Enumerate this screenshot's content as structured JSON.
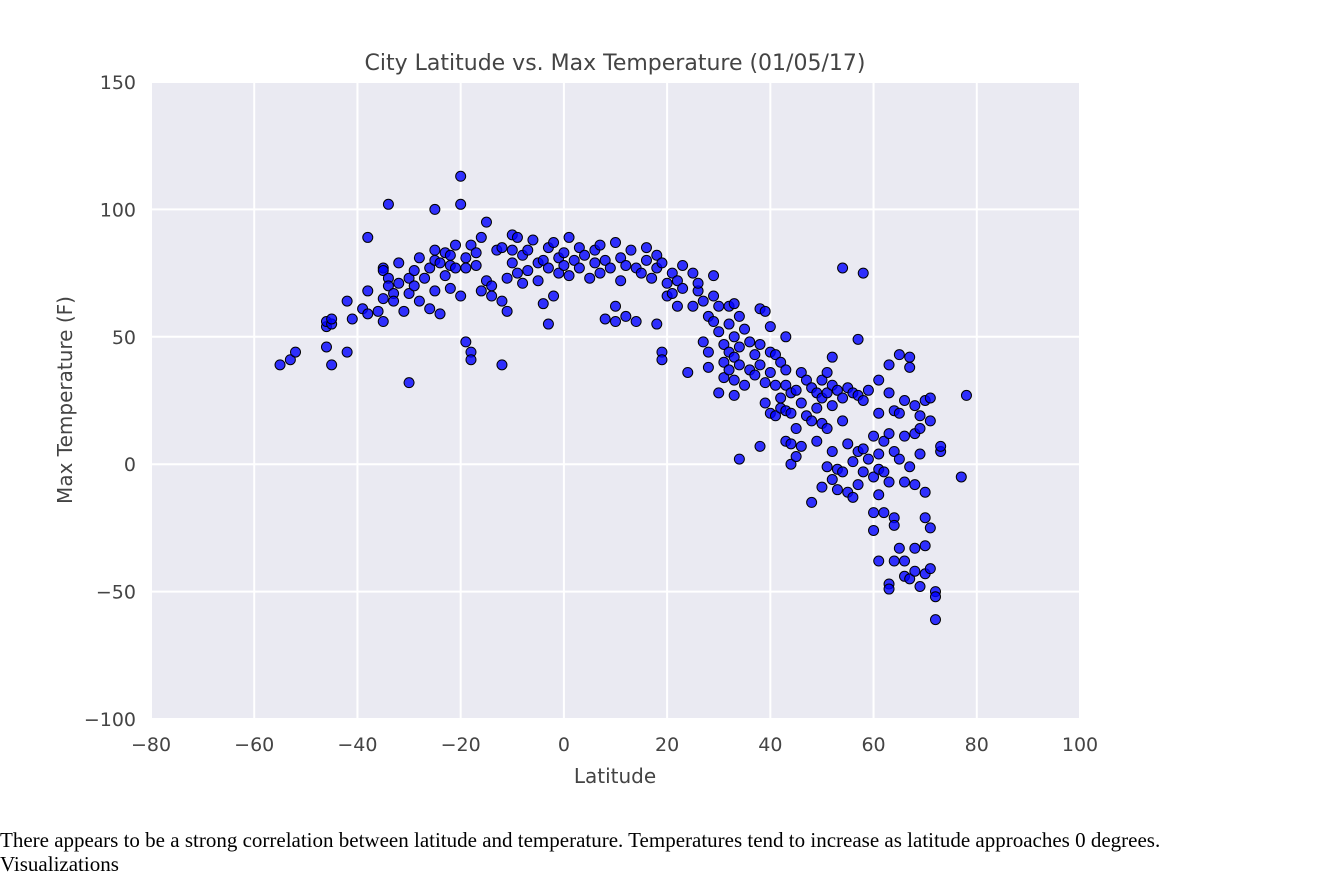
{
  "chart_data": {
    "type": "scatter",
    "title": "City Latitude vs. Max Temperature (01/05/17)",
    "xlabel": "Latitude",
    "ylabel": "Max Temperature (F)",
    "xlim": [
      -80,
      100
    ],
    "ylim": [
      -100,
      150
    ],
    "xticks": [
      -80,
      -60,
      -40,
      -20,
      0,
      20,
      40,
      60,
      80,
      100
    ],
    "yticks": [
      -100,
      -50,
      0,
      50,
      100,
      150
    ],
    "xtick_labels": [
      "−80",
      "−60",
      "−40",
      "−20",
      "0",
      "20",
      "40",
      "60",
      "80",
      "100"
    ],
    "ytick_labels": [
      "−100",
      "−50",
      "0",
      "50",
      "100",
      "150"
    ],
    "grid": true,
    "background": "#EAEAF2",
    "grid_color": "#FFFFFF",
    "marker_color": "#0000FF",
    "marker_edge": "#000000",
    "points": [
      [
        -55,
        39
      ],
      [
        -53,
        41
      ],
      [
        -52,
        44
      ],
      [
        -46,
        54
      ],
      [
        -46,
        56
      ],
      [
        -45,
        55
      ],
      [
        -45,
        57
      ],
      [
        -46,
        46
      ],
      [
        -45,
        39
      ],
      [
        -42,
        64
      ],
      [
        -42,
        44
      ],
      [
        -41,
        57
      ],
      [
        -39,
        61
      ],
      [
        -38,
        59
      ],
      [
        -38,
        68
      ],
      [
        -38,
        89
      ],
      [
        -36,
        60
      ],
      [
        -35,
        77
      ],
      [
        -35,
        76
      ],
      [
        -35,
        65
      ],
      [
        -35,
        56
      ],
      [
        -34,
        73
      ],
      [
        -34,
        102
      ],
      [
        -34,
        70
      ],
      [
        -33,
        67
      ],
      [
        -33,
        64
      ],
      [
        -32,
        79
      ],
      [
        -32,
        71
      ],
      [
        -31,
        60
      ],
      [
        -30,
        32
      ],
      [
        -30,
        73
      ],
      [
        -30,
        67
      ],
      [
        -29,
        76
      ],
      [
        -29,
        70
      ],
      [
        -28,
        81
      ],
      [
        -28,
        64
      ],
      [
        -27,
        73
      ],
      [
        -26,
        61
      ],
      [
        -26,
        77
      ],
      [
        -25,
        84
      ],
      [
        -25,
        80
      ],
      [
        -25,
        68
      ],
      [
        -25,
        100
      ],
      [
        -24,
        59
      ],
      [
        -24,
        79
      ],
      [
        -23,
        83
      ],
      [
        -23,
        74
      ],
      [
        -22,
        82
      ],
      [
        -22,
        78
      ],
      [
        -22,
        69
      ],
      [
        -21,
        86
      ],
      [
        -21,
        77
      ],
      [
        -20,
        113
      ],
      [
        -20,
        102
      ],
      [
        -20,
        66
      ],
      [
        -19,
        48
      ],
      [
        -19,
        77
      ],
      [
        -19,
        81
      ],
      [
        -18,
        44
      ],
      [
        -18,
        41
      ],
      [
        -18,
        86
      ],
      [
        -17,
        83
      ],
      [
        -17,
        78
      ],
      [
        -16,
        68
      ],
      [
        -16,
        89
      ],
      [
        -15,
        95
      ],
      [
        -15,
        72
      ],
      [
        -14,
        70
      ],
      [
        -14,
        66
      ],
      [
        -13,
        84
      ],
      [
        -12,
        85
      ],
      [
        -12,
        39
      ],
      [
        -12,
        64
      ],
      [
        -11,
        73
      ],
      [
        -11,
        60
      ],
      [
        -10,
        90
      ],
      [
        -10,
        84
      ],
      [
        -10,
        79
      ],
      [
        -9,
        89
      ],
      [
        -9,
        75
      ],
      [
        -8,
        82
      ],
      [
        -8,
        71
      ],
      [
        -7,
        84
      ],
      [
        -7,
        76
      ],
      [
        -6,
        88
      ],
      [
        -5,
        79
      ],
      [
        -5,
        72
      ],
      [
        -4,
        80
      ],
      [
        -4,
        63
      ],
      [
        -3,
        55
      ],
      [
        -3,
        85
      ],
      [
        -3,
        77
      ],
      [
        -2,
        66
      ],
      [
        -2,
        87
      ],
      [
        -1,
        81
      ],
      [
        -1,
        75
      ],
      [
        0,
        78
      ],
      [
        0,
        83
      ],
      [
        1,
        89
      ],
      [
        1,
        74
      ],
      [
        2,
        80
      ],
      [
        3,
        85
      ],
      [
        3,
        77
      ],
      [
        4,
        82
      ],
      [
        5,
        73
      ],
      [
        6,
        79
      ],
      [
        6,
        84
      ],
      [
        7,
        75
      ],
      [
        7,
        86
      ],
      [
        8,
        80
      ],
      [
        8,
        57
      ],
      [
        9,
        77
      ],
      [
        10,
        87
      ],
      [
        10,
        56
      ],
      [
        10,
        62
      ],
      [
        11,
        81
      ],
      [
        11,
        72
      ],
      [
        12,
        78
      ],
      [
        12,
        58
      ],
      [
        13,
        84
      ],
      [
        14,
        77
      ],
      [
        14,
        56
      ],
      [
        15,
        75
      ],
      [
        16,
        85
      ],
      [
        16,
        80
      ],
      [
        17,
        73
      ],
      [
        18,
        82
      ],
      [
        18,
        77
      ],
      [
        18,
        55
      ],
      [
        19,
        79
      ],
      [
        19,
        44
      ],
      [
        19,
        41
      ],
      [
        20,
        71
      ],
      [
        20,
        66
      ],
      [
        21,
        75
      ],
      [
        21,
        67
      ],
      [
        22,
        62
      ],
      [
        22,
        72
      ],
      [
        23,
        78
      ],
      [
        23,
        69
      ],
      [
        24,
        36
      ],
      [
        25,
        75
      ],
      [
        25,
        62
      ],
      [
        26,
        68
      ],
      [
        26,
        71
      ],
      [
        27,
        64
      ],
      [
        27,
        48
      ],
      [
        28,
        58
      ],
      [
        28,
        44
      ],
      [
        28,
        38
      ],
      [
        29,
        74
      ],
      [
        29,
        66
      ],
      [
        29,
        56
      ],
      [
        30,
        28
      ],
      [
        30,
        62
      ],
      [
        30,
        52
      ],
      [
        31,
        47
      ],
      [
        31,
        40
      ],
      [
        31,
        34
      ],
      [
        32,
        62
      ],
      [
        32,
        55
      ],
      [
        32,
        44
      ],
      [
        32,
        37
      ],
      [
        33,
        63
      ],
      [
        33,
        50
      ],
      [
        33,
        42
      ],
      [
        33,
        33
      ],
      [
        33,
        27
      ],
      [
        34,
        58
      ],
      [
        34,
        46
      ],
      [
        34,
        39
      ],
      [
        34,
        2
      ],
      [
        35,
        53
      ],
      [
        35,
        31
      ],
      [
        36,
        48
      ],
      [
        36,
        37
      ],
      [
        37,
        43
      ],
      [
        37,
        35
      ],
      [
        38,
        61
      ],
      [
        38,
        47
      ],
      [
        38,
        39
      ],
      [
        38,
        7
      ],
      [
        39,
        60
      ],
      [
        39,
        32
      ],
      [
        39,
        24
      ],
      [
        40,
        54
      ],
      [
        40,
        44
      ],
      [
        40,
        36
      ],
      [
        40,
        20
      ],
      [
        41,
        43
      ],
      [
        41,
        31
      ],
      [
        41,
        19
      ],
      [
        42,
        40
      ],
      [
        42,
        26
      ],
      [
        42,
        22
      ],
      [
        43,
        50
      ],
      [
        43,
        37
      ],
      [
        43,
        31
      ],
      [
        43,
        21
      ],
      [
        43,
        9
      ],
      [
        44,
        28
      ],
      [
        44,
        20
      ],
      [
        44,
        8
      ],
      [
        44,
        0
      ],
      [
        45,
        29
      ],
      [
        45,
        14
      ],
      [
        45,
        3
      ],
      [
        46,
        36
      ],
      [
        46,
        24
      ],
      [
        46,
        7
      ],
      [
        47,
        33
      ],
      [
        47,
        19
      ],
      [
        48,
        -15
      ],
      [
        48,
        30
      ],
      [
        48,
        17
      ],
      [
        49,
        28
      ],
      [
        49,
        22
      ],
      [
        49,
        9
      ],
      [
        50,
        33
      ],
      [
        50,
        26
      ],
      [
        50,
        16
      ],
      [
        50,
        -9
      ],
      [
        51,
        36
      ],
      [
        51,
        28
      ],
      [
        51,
        14
      ],
      [
        51,
        -1
      ],
      [
        52,
        42
      ],
      [
        52,
        31
      ],
      [
        52,
        23
      ],
      [
        52,
        5
      ],
      [
        52,
        -6
      ],
      [
        53,
        29
      ],
      [
        53,
        -2
      ],
      [
        53,
        -10
      ],
      [
        54,
        77
      ],
      [
        54,
        26
      ],
      [
        54,
        17
      ],
      [
        54,
        -3
      ],
      [
        55,
        30
      ],
      [
        55,
        8
      ],
      [
        55,
        -11
      ],
      [
        56,
        28
      ],
      [
        56,
        1
      ],
      [
        56,
        -13
      ],
      [
        57,
        49
      ],
      [
        57,
        27
      ],
      [
        57,
        5
      ],
      [
        57,
        -8
      ],
      [
        58,
        75
      ],
      [
        58,
        25
      ],
      [
        58,
        6
      ],
      [
        58,
        -3
      ],
      [
        59,
        29
      ],
      [
        59,
        2
      ],
      [
        60,
        -19
      ],
      [
        60,
        11
      ],
      [
        60,
        -5
      ],
      [
        60,
        -26
      ],
      [
        61,
        33
      ],
      [
        61,
        20
      ],
      [
        61,
        4
      ],
      [
        61,
        -2
      ],
      [
        61,
        -12
      ],
      [
        61,
        -38
      ],
      [
        62,
        9
      ],
      [
        62,
        -3
      ],
      [
        62,
        -19
      ],
      [
        63,
        39
      ],
      [
        63,
        28
      ],
      [
        63,
        12
      ],
      [
        63,
        -7
      ],
      [
        63,
        -47
      ],
      [
        63,
        -49
      ],
      [
        64,
        21
      ],
      [
        64,
        5
      ],
      [
        64,
        -21
      ],
      [
        64,
        -24
      ],
      [
        64,
        -38
      ],
      [
        65,
        43
      ],
      [
        65,
        20
      ],
      [
        65,
        2
      ],
      [
        65,
        -33
      ],
      [
        66,
        25
      ],
      [
        66,
        11
      ],
      [
        66,
        -7
      ],
      [
        66,
        -38
      ],
      [
        66,
        -44
      ],
      [
        67,
        42
      ],
      [
        67,
        38
      ],
      [
        67,
        -1
      ],
      [
        67,
        -45
      ],
      [
        68,
        23
      ],
      [
        68,
        12
      ],
      [
        68,
        -8
      ],
      [
        68,
        -33
      ],
      [
        68,
        -42
      ],
      [
        69,
        19
      ],
      [
        69,
        14
      ],
      [
        69,
        4
      ],
      [
        69,
        -48
      ],
      [
        70,
        25
      ],
      [
        70,
        -11
      ],
      [
        70,
        -21
      ],
      [
        70,
        -32
      ],
      [
        70,
        -43
      ],
      [
        71,
        26
      ],
      [
        71,
        17
      ],
      [
        71,
        -25
      ],
      [
        71,
        -41
      ],
      [
        72,
        -50
      ],
      [
        72,
        -52
      ],
      [
        72,
        -61
      ],
      [
        73,
        5
      ],
      [
        73,
        7
      ],
      [
        77,
        -5
      ],
      [
        78,
        27
      ]
    ]
  },
  "caption": "There appears to be a strong correlation between latitude and temperature. Temperatures tend to increase as latitude approaches 0 degrees.",
  "section_heading": "Visualizations"
}
